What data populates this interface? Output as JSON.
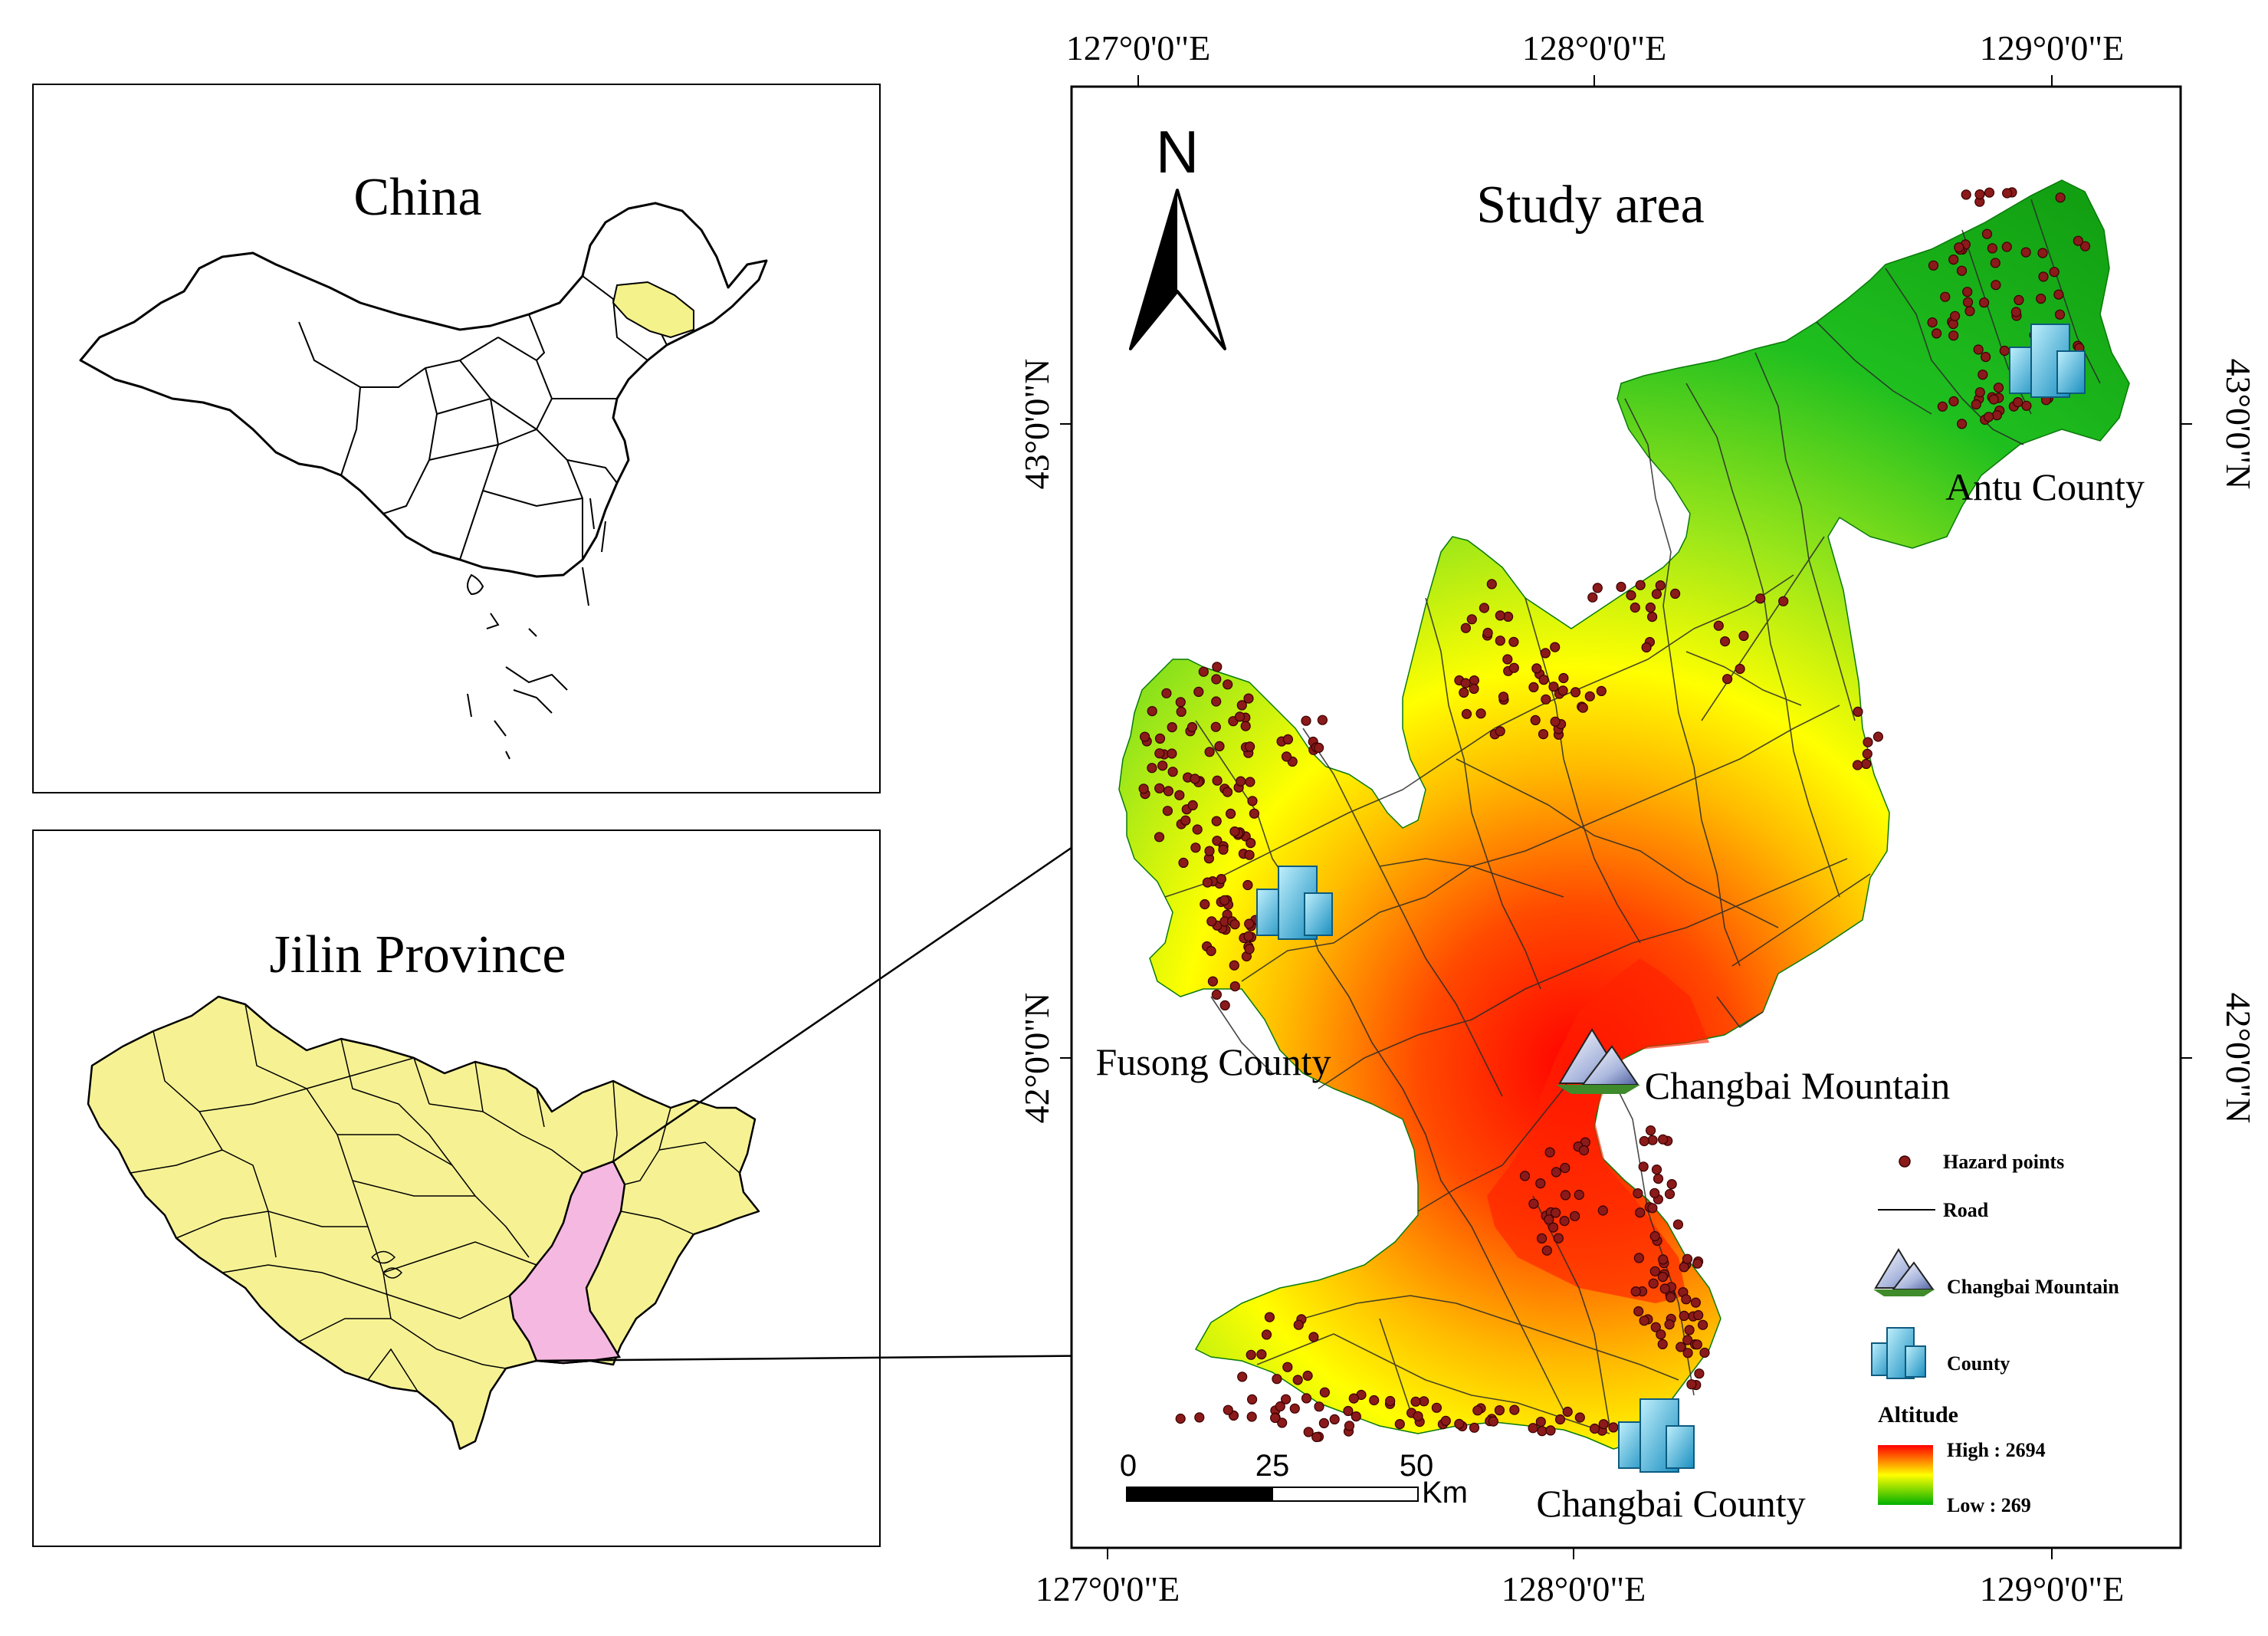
{
  "inset_china": {
    "title": "China"
  },
  "inset_jilin": {
    "title": "Jilin Province"
  },
  "main_map": {
    "title": "Study area",
    "north_arrow_label": "N",
    "top_longitudes": [
      "127°0'0\"E",
      "128°0'0\"E",
      "129°0'0\"E"
    ],
    "bottom_longitudes": [
      "127°0'0\"E",
      "128°0'0\"E",
      "129°0'0\"E"
    ],
    "left_latitudes": [
      "43°0'0\"N",
      "42°0'0\"N"
    ],
    "right_latitudes": [
      "43°0'0\"N",
      "42°0'0\"N"
    ],
    "places": {
      "antu": "Antu County",
      "fusong": "Fusong County",
      "changbai_mountain": "Changbai Mountain",
      "changbai_county": "Changbai County"
    },
    "scale_bar": {
      "ticks": [
        "0",
        "25",
        "50"
      ],
      "unit": "Km"
    }
  },
  "legend": {
    "hazard_points": "Hazard points",
    "road": "Road",
    "changbai_mountain": "Changbai Mountain",
    "county": "County",
    "altitude_title": "Altitude",
    "high_label": "High : 2694",
    "low_label": "Low : 269"
  },
  "colors": {
    "province_fill": "#f6f294",
    "study_area_fill": "#f5b8e0",
    "china_highlight": "#f4f28a",
    "hazard_point": "#8b1a1a",
    "altitude_high": "#ff0000",
    "altitude_mid": "#ffff00",
    "altitude_low": "#00b000"
  }
}
